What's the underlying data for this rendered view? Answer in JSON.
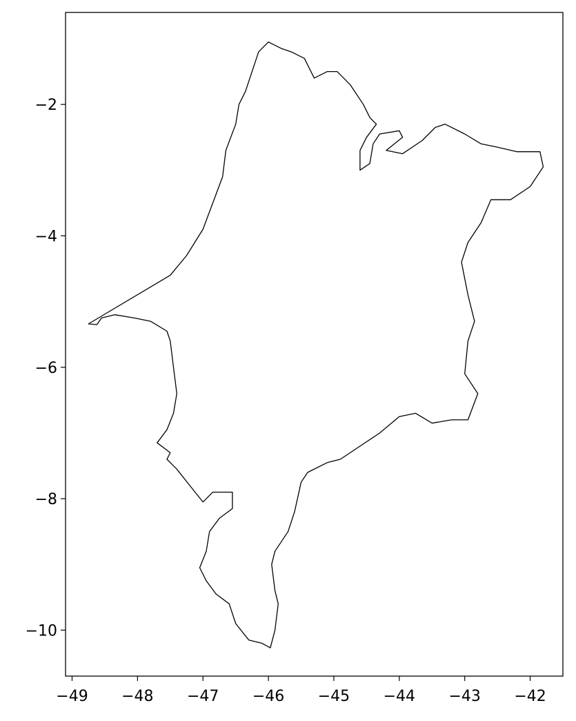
{
  "chart_data": {
    "type": "map",
    "title": "",
    "xlabel": "",
    "ylabel": "",
    "xlim": [
      -49.1,
      -41.5
    ],
    "ylim": [
      -10.7,
      -0.6
    ],
    "grid": false,
    "line_color": "#000000",
    "x_ticks": [
      {
        "value": -49,
        "label": "−49"
      },
      {
        "value": -48,
        "label": "−48"
      },
      {
        "value": -47,
        "label": "−47"
      },
      {
        "value": -46,
        "label": "−46"
      },
      {
        "value": -45,
        "label": "−45"
      },
      {
        "value": -44,
        "label": "−44"
      },
      {
        "value": -43,
        "label": "−43"
      },
      {
        "value": -42,
        "label": "−42"
      }
    ],
    "y_ticks": [
      {
        "value": -2,
        "label": "−2"
      },
      {
        "value": -4,
        "label": "−4"
      },
      {
        "value": -6,
        "label": "−6"
      },
      {
        "value": -8,
        "label": "−8"
      },
      {
        "value": -10,
        "label": "−10"
      }
    ],
    "outline": [
      [
        -48.75,
        -5.34
      ],
      [
        -47.5,
        -4.6
      ],
      [
        -47.25,
        -4.3
      ],
      [
        -47.0,
        -3.9
      ],
      [
        -46.85,
        -3.5
      ],
      [
        -46.7,
        -3.1
      ],
      [
        -46.65,
        -2.7
      ],
      [
        -46.5,
        -2.3
      ],
      [
        -46.45,
        -2.0
      ],
      [
        -46.35,
        -1.8
      ],
      [
        -46.25,
        -1.5
      ],
      [
        -46.15,
        -1.2
      ],
      [
        -46.0,
        -1.05
      ],
      [
        -45.8,
        -1.15
      ],
      [
        -45.65,
        -1.2
      ],
      [
        -45.45,
        -1.3
      ],
      [
        -45.3,
        -1.6
      ],
      [
        -45.1,
        -1.5
      ],
      [
        -44.95,
        -1.5
      ],
      [
        -44.75,
        -1.7
      ],
      [
        -44.55,
        -2.0
      ],
      [
        -44.45,
        -2.2
      ],
      [
        -44.35,
        -2.3
      ],
      [
        -44.5,
        -2.5
      ],
      [
        -44.6,
        -2.7
      ],
      [
        -44.6,
        -3.0
      ],
      [
        -44.45,
        -2.9
      ],
      [
        -44.4,
        -2.6
      ],
      [
        -44.3,
        -2.45
      ],
      [
        -44.0,
        -2.4
      ],
      [
        -43.95,
        -2.5
      ],
      [
        -44.2,
        -2.7
      ],
      [
        -43.95,
        -2.75
      ],
      [
        -43.65,
        -2.55
      ],
      [
        -43.45,
        -2.35
      ],
      [
        -43.3,
        -2.3
      ],
      [
        -43.0,
        -2.45
      ],
      [
        -42.75,
        -2.6
      ],
      [
        -42.5,
        -2.65
      ],
      [
        -42.2,
        -2.72
      ],
      [
        -41.85,
        -2.72
      ],
      [
        -41.8,
        -2.95
      ],
      [
        -42.0,
        -3.25
      ],
      [
        -42.3,
        -3.45
      ],
      [
        -42.6,
        -3.45
      ],
      [
        -42.75,
        -3.8
      ],
      [
        -42.95,
        -4.1
      ],
      [
        -43.05,
        -4.4
      ],
      [
        -42.95,
        -4.9
      ],
      [
        -42.85,
        -5.3
      ],
      [
        -42.95,
        -5.6
      ],
      [
        -43.0,
        -6.1
      ],
      [
        -42.8,
        -6.4
      ],
      [
        -42.95,
        -6.8
      ],
      [
        -43.2,
        -6.8
      ],
      [
        -43.5,
        -6.85
      ],
      [
        -43.75,
        -6.7
      ],
      [
        -44.0,
        -6.75
      ],
      [
        -44.3,
        -7.0
      ],
      [
        -44.6,
        -7.2
      ],
      [
        -44.9,
        -7.4
      ],
      [
        -45.1,
        -7.45
      ],
      [
        -45.4,
        -7.6
      ],
      [
        -45.5,
        -7.75
      ],
      [
        -45.6,
        -8.2
      ],
      [
        -45.7,
        -8.5
      ],
      [
        -45.9,
        -8.8
      ],
      [
        -45.95,
        -9.0
      ],
      [
        -45.9,
        -9.4
      ],
      [
        -45.85,
        -9.6
      ],
      [
        -45.9,
        -10.0
      ],
      [
        -45.97,
        -10.27
      ],
      [
        -46.1,
        -10.2
      ],
      [
        -46.3,
        -10.15
      ],
      [
        -46.5,
        -9.9
      ],
      [
        -46.6,
        -9.6
      ],
      [
        -46.8,
        -9.45
      ],
      [
        -46.95,
        -9.25
      ],
      [
        -47.05,
        -9.05
      ],
      [
        -46.95,
        -8.8
      ],
      [
        -46.9,
        -8.5
      ],
      [
        -46.75,
        -8.3
      ],
      [
        -46.55,
        -8.15
      ],
      [
        -46.55,
        -7.9
      ],
      [
        -46.85,
        -7.9
      ],
      [
        -47.0,
        -8.05
      ],
      [
        -47.2,
        -7.8
      ],
      [
        -47.4,
        -7.55
      ],
      [
        -47.55,
        -7.4
      ],
      [
        -47.5,
        -7.3
      ],
      [
        -47.7,
        -7.15
      ],
      [
        -47.55,
        -6.95
      ],
      [
        -47.45,
        -6.7
      ],
      [
        -47.4,
        -6.4
      ],
      [
        -47.45,
        -6.0
      ],
      [
        -47.5,
        -5.6
      ],
      [
        -47.55,
        -5.45
      ],
      [
        -47.8,
        -5.3
      ],
      [
        -48.05,
        -5.25
      ],
      [
        -48.35,
        -5.2
      ],
      [
        -48.55,
        -5.25
      ],
      [
        -48.62,
        -5.35
      ],
      [
        -48.75,
        -5.34
      ]
    ]
  }
}
